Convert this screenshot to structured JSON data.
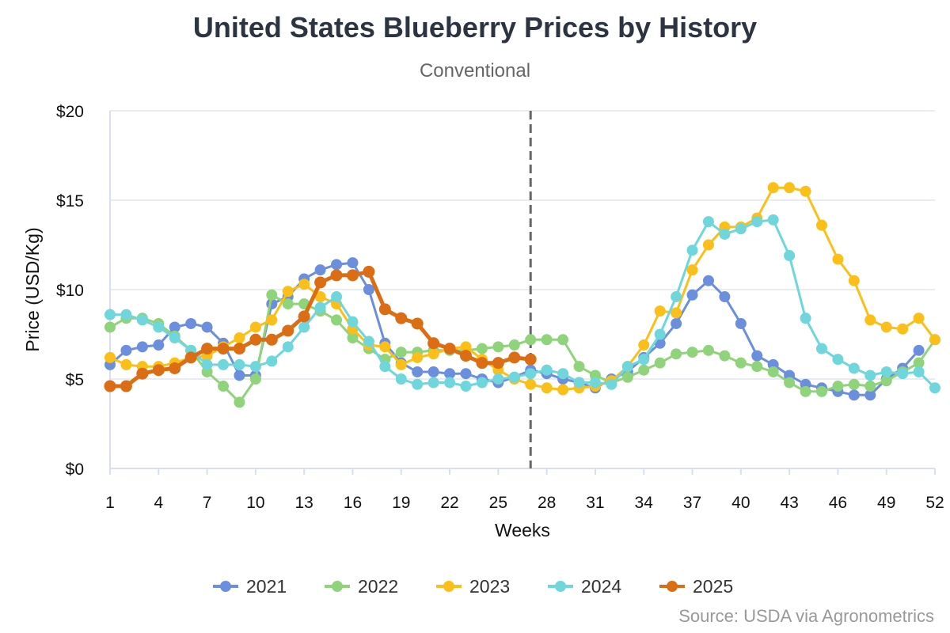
{
  "chart_data": {
    "type": "line",
    "title": "United States Blueberry Prices by History",
    "subtitle": "Conventional",
    "xlabel": "Weeks",
    "ylabel": "Price (USD/Kg)",
    "source": "Source: USDA via Agronometrics",
    "xlim": [
      1,
      52
    ],
    "ylim": [
      0,
      20
    ],
    "x_ticks": [
      1,
      4,
      7,
      10,
      13,
      16,
      19,
      22,
      25,
      28,
      31,
      34,
      37,
      40,
      43,
      46,
      49,
      52
    ],
    "y_ticks": [
      0,
      5,
      10,
      15,
      20
    ],
    "y_tick_labels": [
      "$0",
      "$5",
      "$10",
      "$15",
      "$20"
    ],
    "reference_line_week": 27,
    "legend_position": "bottom-center",
    "series": [
      {
        "name": "2021",
        "color": "#6b8fdc",
        "x": [
          1,
          2,
          3,
          4,
          5,
          6,
          7,
          8,
          9,
          10,
          11,
          12,
          13,
          14,
          15,
          16,
          17,
          18,
          19,
          20,
          21,
          22,
          23,
          24,
          25,
          26,
          27,
          28,
          29,
          30,
          31,
          32,
          33,
          34,
          35,
          36,
          37,
          38,
          39,
          40,
          41,
          42,
          43,
          44,
          45,
          46,
          47,
          48,
          49,
          50,
          51
        ],
        "values": [
          5.8,
          6.6,
          6.8,
          6.9,
          7.9,
          8.1,
          7.9,
          7.0,
          5.2,
          5.2,
          9.2,
          9.6,
          10.6,
          11.1,
          11.4,
          11.5,
          10.0,
          7.0,
          5.9,
          5.4,
          5.4,
          5.3,
          5.3,
          5.0,
          4.8,
          5.1,
          5.5,
          5.3,
          5.0,
          4.8,
          4.5,
          5.0,
          5.4,
          6.2,
          7.0,
          8.1,
          9.7,
          10.5,
          9.6,
          8.1,
          6.3,
          5.8,
          5.2,
          4.7,
          4.5,
          4.3,
          4.1,
          4.1,
          5.0,
          5.6,
          6.6
        ]
      },
      {
        "name": "2022",
        "color": "#8fd37a",
        "x": [
          1,
          2,
          3,
          4,
          5,
          6,
          7,
          8,
          9,
          10,
          11,
          12,
          13,
          14,
          15,
          16,
          17,
          18,
          19,
          20,
          21,
          22,
          23,
          24,
          25,
          26,
          27,
          28,
          29,
          30,
          31,
          32,
          33,
          34,
          35,
          36,
          37,
          38,
          39,
          40,
          41,
          42,
          43,
          44,
          45,
          46,
          47,
          48,
          49,
          50,
          51,
          52
        ],
        "values": [
          7.9,
          8.4,
          8.4,
          8.1,
          7.4,
          6.6,
          5.4,
          4.6,
          3.7,
          5.0,
          9.7,
          9.2,
          9.2,
          8.8,
          8.3,
          7.3,
          6.7,
          6.1,
          6.5,
          6.5,
          6.6,
          6.6,
          6.6,
          6.7,
          6.8,
          6.9,
          7.2,
          7.2,
          7.2,
          5.7,
          5.2,
          4.8,
          5.1,
          5.5,
          5.9,
          6.4,
          6.5,
          6.6,
          6.3,
          5.9,
          5.7,
          5.4,
          4.8,
          4.3,
          4.3,
          4.6,
          4.7,
          4.6,
          4.9,
          5.4,
          5.9,
          7.2
        ]
      },
      {
        "name": "2023",
        "color": "#fbbf1a",
        "x": [
          1,
          2,
          3,
          4,
          5,
          6,
          7,
          8,
          9,
          10,
          11,
          12,
          13,
          14,
          15,
          16,
          17,
          18,
          19,
          20,
          21,
          22,
          23,
          24,
          25,
          26,
          27,
          28,
          29,
          30,
          31,
          32,
          33,
          34,
          35,
          36,
          37,
          38,
          39,
          40,
          41,
          42,
          43,
          44,
          45,
          46,
          47,
          48,
          49,
          50,
          51,
          52
        ],
        "values": [
          6.2,
          5.8,
          5.7,
          5.7,
          5.9,
          6.2,
          6.3,
          6.8,
          7.3,
          7.9,
          8.3,
          9.9,
          10.3,
          9.6,
          9.2,
          7.8,
          6.9,
          6.8,
          5.8,
          6.2,
          6.4,
          6.7,
          6.8,
          6.1,
          5.5,
          5.0,
          4.7,
          4.5,
          4.4,
          4.5,
          4.6,
          4.9,
          5.7,
          6.9,
          8.8,
          8.7,
          11.1,
          12.5,
          13.5,
          13.5,
          14.0,
          15.7,
          15.7,
          15.5,
          13.6,
          11.7,
          10.5,
          8.3,
          7.9,
          7.8,
          8.4,
          7.2
        ]
      },
      {
        "name": "2024",
        "color": "#6fd6dc",
        "x": [
          1,
          2,
          3,
          4,
          5,
          6,
          7,
          8,
          9,
          10,
          11,
          12,
          13,
          14,
          15,
          16,
          17,
          18,
          19,
          20,
          21,
          22,
          23,
          24,
          25,
          26,
          27,
          28,
          29,
          30,
          31,
          32,
          33,
          34,
          35,
          36,
          37,
          38,
          39,
          40,
          41,
          42,
          43,
          44,
          45,
          46,
          47,
          48,
          49,
          50,
          51,
          52
        ],
        "values": [
          8.6,
          8.6,
          8.3,
          7.9,
          7.3,
          6.6,
          5.8,
          5.8,
          5.8,
          5.7,
          6.0,
          6.8,
          7.9,
          9.0,
          9.6,
          8.2,
          7.1,
          5.7,
          5.0,
          4.7,
          4.8,
          4.8,
          4.6,
          4.8,
          5.0,
          5.1,
          5.3,
          5.5,
          5.3,
          4.8,
          4.8,
          4.7,
          5.7,
          6.1,
          7.5,
          9.6,
          12.2,
          13.8,
          13.1,
          13.4,
          13.8,
          13.9,
          11.9,
          8.4,
          6.7,
          6.1,
          5.6,
          5.2,
          5.4,
          5.3,
          5.4,
          4.5
        ]
      },
      {
        "name": "2025",
        "color": "#db6e14",
        "x": [
          1,
          2,
          3,
          4,
          5,
          6,
          7,
          8,
          9,
          10,
          11,
          12,
          13,
          14,
          15,
          16,
          17,
          18,
          19,
          20,
          21,
          22,
          23,
          24,
          25,
          26,
          27
        ],
        "values": [
          4.6,
          4.6,
          5.3,
          5.5,
          5.6,
          6.2,
          6.7,
          6.7,
          6.7,
          7.2,
          7.2,
          7.7,
          8.5,
          10.4,
          10.8,
          10.8,
          11.0,
          8.9,
          8.4,
          8.1,
          7.0,
          6.7,
          6.3,
          5.9,
          5.9,
          6.2,
          6.1
        ]
      }
    ]
  }
}
